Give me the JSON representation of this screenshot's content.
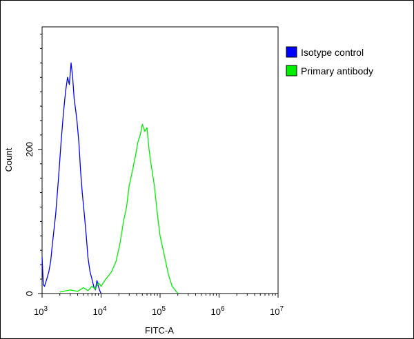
{
  "chart_data": {
    "type": "line",
    "title": "",
    "xlabel": "FITC-A",
    "ylabel": "Count",
    "x_scale": "log",
    "xlim": [
      1000,
      10000000
    ],
    "ylim": [
      0,
      370
    ],
    "x_ticks": [
      {
        "value": 1000,
        "base": "10",
        "exp": "3"
      },
      {
        "value": 10000,
        "base": "10",
        "exp": "4"
      },
      {
        "value": 100000,
        "base": "10",
        "exp": "5"
      },
      {
        "value": 1000000,
        "base": "10",
        "exp": "6"
      },
      {
        "value": 10000000,
        "base": "10",
        "exp": "7"
      }
    ],
    "y_ticks": [
      {
        "value": 0,
        "label": "0"
      },
      {
        "value": 200,
        "label": "200"
      }
    ],
    "grid": false,
    "legend_position": "top-right",
    "series": [
      {
        "name": "Isotype control",
        "color": "#0000ff",
        "x": [
          1000,
          1050,
          1100,
          1200,
          1300,
          1400,
          1500,
          1700,
          1900,
          2100,
          2300,
          2500,
          2700,
          2900,
          3100,
          3300,
          3500,
          3700,
          3900,
          4200,
          4500,
          4800,
          5200,
          5600,
          6000,
          6500,
          7000,
          7500,
          8000,
          8500,
          9000,
          9500,
          10000
        ],
        "y": [
          50,
          12,
          10,
          20,
          30,
          45,
          70,
          110,
          160,
          210,
          250,
          280,
          300,
          290,
          320,
          300,
          270,
          255,
          240,
          210,
          170,
          140,
          110,
          80,
          50,
          30,
          20,
          10,
          5,
          18,
          10,
          4,
          0
        ]
      },
      {
        "name": "Primary antibody",
        "color": "#00ee00",
        "x": [
          2000,
          3000,
          4000,
          5000,
          6000,
          7000,
          8000,
          9000,
          10000,
          12000,
          15000,
          18000,
          21000,
          24000,
          27000,
          30000,
          34000,
          38000,
          42000,
          46000,
          50000,
          55000,
          60000,
          65000,
          70000,
          80000,
          90000,
          100000,
          120000,
          140000,
          160000,
          180000,
          200000
        ],
        "y": [
          2,
          5,
          3,
          8,
          4,
          10,
          6,
          15,
          10,
          20,
          30,
          45,
          70,
          100,
          120,
          150,
          170,
          190,
          210,
          220,
          235,
          225,
          230,
          200,
          180,
          150,
          110,
          80,
          50,
          25,
          10,
          5,
          0
        ]
      }
    ]
  }
}
